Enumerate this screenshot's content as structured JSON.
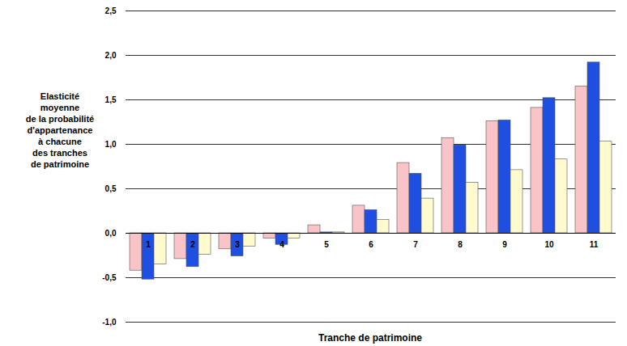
{
  "chart_data": {
    "type": "bar",
    "y_label": "Elasticité\nmoyenne\nde la probabilité\nd'appartenance\nà chacune\ndes tranches\nde patrimoine",
    "x_label": "Tranche de patrimoine",
    "categories": [
      "1",
      "2",
      "3",
      "4",
      "5",
      "6",
      "7",
      "8",
      "9",
      "10",
      "11"
    ],
    "series": [
      {
        "color": "#f9c3c8",
        "values": [
          -0.42,
          -0.29,
          -0.18,
          -0.06,
          0.09,
          0.31,
          0.79,
          1.07,
          1.26,
          1.41,
          1.65
        ]
      },
      {
        "color": "#1f4fe0",
        "values": [
          -0.52,
          -0.38,
          -0.26,
          -0.13,
          0.01,
          0.26,
          0.67,
          0.99,
          1.27,
          1.52,
          1.92
        ]
      },
      {
        "color": "#fffbcf",
        "values": [
          -0.35,
          -0.24,
          -0.15,
          -0.06,
          0.01,
          0.15,
          0.39,
          0.57,
          0.71,
          0.83,
          1.03
        ]
      }
    ],
    "ylim": [
      -1,
      2.5
    ],
    "yticks": [
      {
        "value": -1,
        "label": "-1,0"
      },
      {
        "value": -0.5,
        "label": "-0,5"
      },
      {
        "value": 0,
        "label": "0,0"
      },
      {
        "value": 0.5,
        "label": "0,5"
      },
      {
        "value": 1,
        "label": "1,0"
      },
      {
        "value": 1.5,
        "label": "1,5"
      },
      {
        "value": 2,
        "label": "2,0"
      },
      {
        "value": 2.5,
        "label": "2,5"
      }
    ],
    "grid": true
  }
}
